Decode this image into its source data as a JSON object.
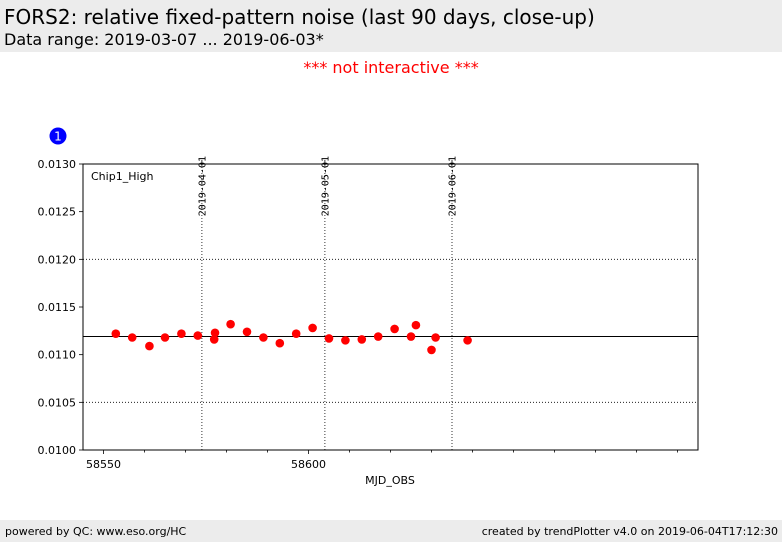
{
  "header": {
    "title": "FORS2: relative fixed-pattern noise (last 90 days, close-up)",
    "subtitle": "Data range: 2019-03-07 ... 2019-06-03*"
  },
  "notice": "*** not interactive ***",
  "badge": {
    "label": "1",
    "color": "#0000ff"
  },
  "footer": {
    "left": "powered by QC: www.eso.org/HC",
    "right": "created by trendPlotter v4.0 on 2019-06-04T17:12:30"
  },
  "colors": {
    "points": "#ff0000",
    "reference_line": "#000000",
    "grid": "#000000"
  },
  "chart_data": {
    "type": "scatter",
    "panel_label": "Chip1_High",
    "xlabel": "MJD_OBS",
    "ylabel": "",
    "xlim": [
      58545,
      58695
    ],
    "ylim": [
      0.01,
      0.013
    ],
    "x_ticks": [
      58550,
      58600
    ],
    "x_tick_labels": [
      "58550",
      "58600"
    ],
    "y_ticks": [
      0.01,
      0.0105,
      0.011,
      0.0115,
      0.012,
      0.0125,
      0.013
    ],
    "y_tick_labels": [
      "0.0100",
      "0.0105",
      "0.0110",
      "0.0115",
      "0.0120",
      "0.0125",
      "0.0130"
    ],
    "y_gridlines": [
      0.0105,
      0.012
    ],
    "date_markers": [
      {
        "x": 58574,
        "label": "2019-04-01"
      },
      {
        "x": 58604,
        "label": "2019-05-01"
      },
      {
        "x": 58635,
        "label": "2019-06-01"
      }
    ],
    "reference_line": 0.01119,
    "series": [
      {
        "x": [
          58553,
          58557,
          58561.2,
          58565,
          58569,
          58573,
          58577,
          58577.2,
          58581,
          58585,
          58589,
          58593,
          58597,
          58601,
          58605,
          58609,
          58613,
          58617,
          58621,
          58625,
          58626.2,
          58630,
          58631,
          58638.8
        ],
        "y": [
          0.01122,
          0.01118,
          0.01109,
          0.01118,
          0.01122,
          0.0112,
          0.01116,
          0.01123,
          0.01132,
          0.01124,
          0.01118,
          0.01112,
          0.01122,
          0.01128,
          0.01117,
          0.01115,
          0.01116,
          0.01119,
          0.01127,
          0.01119,
          0.01131,
          0.01105,
          0.01118,
          0.01115
        ]
      }
    ]
  }
}
